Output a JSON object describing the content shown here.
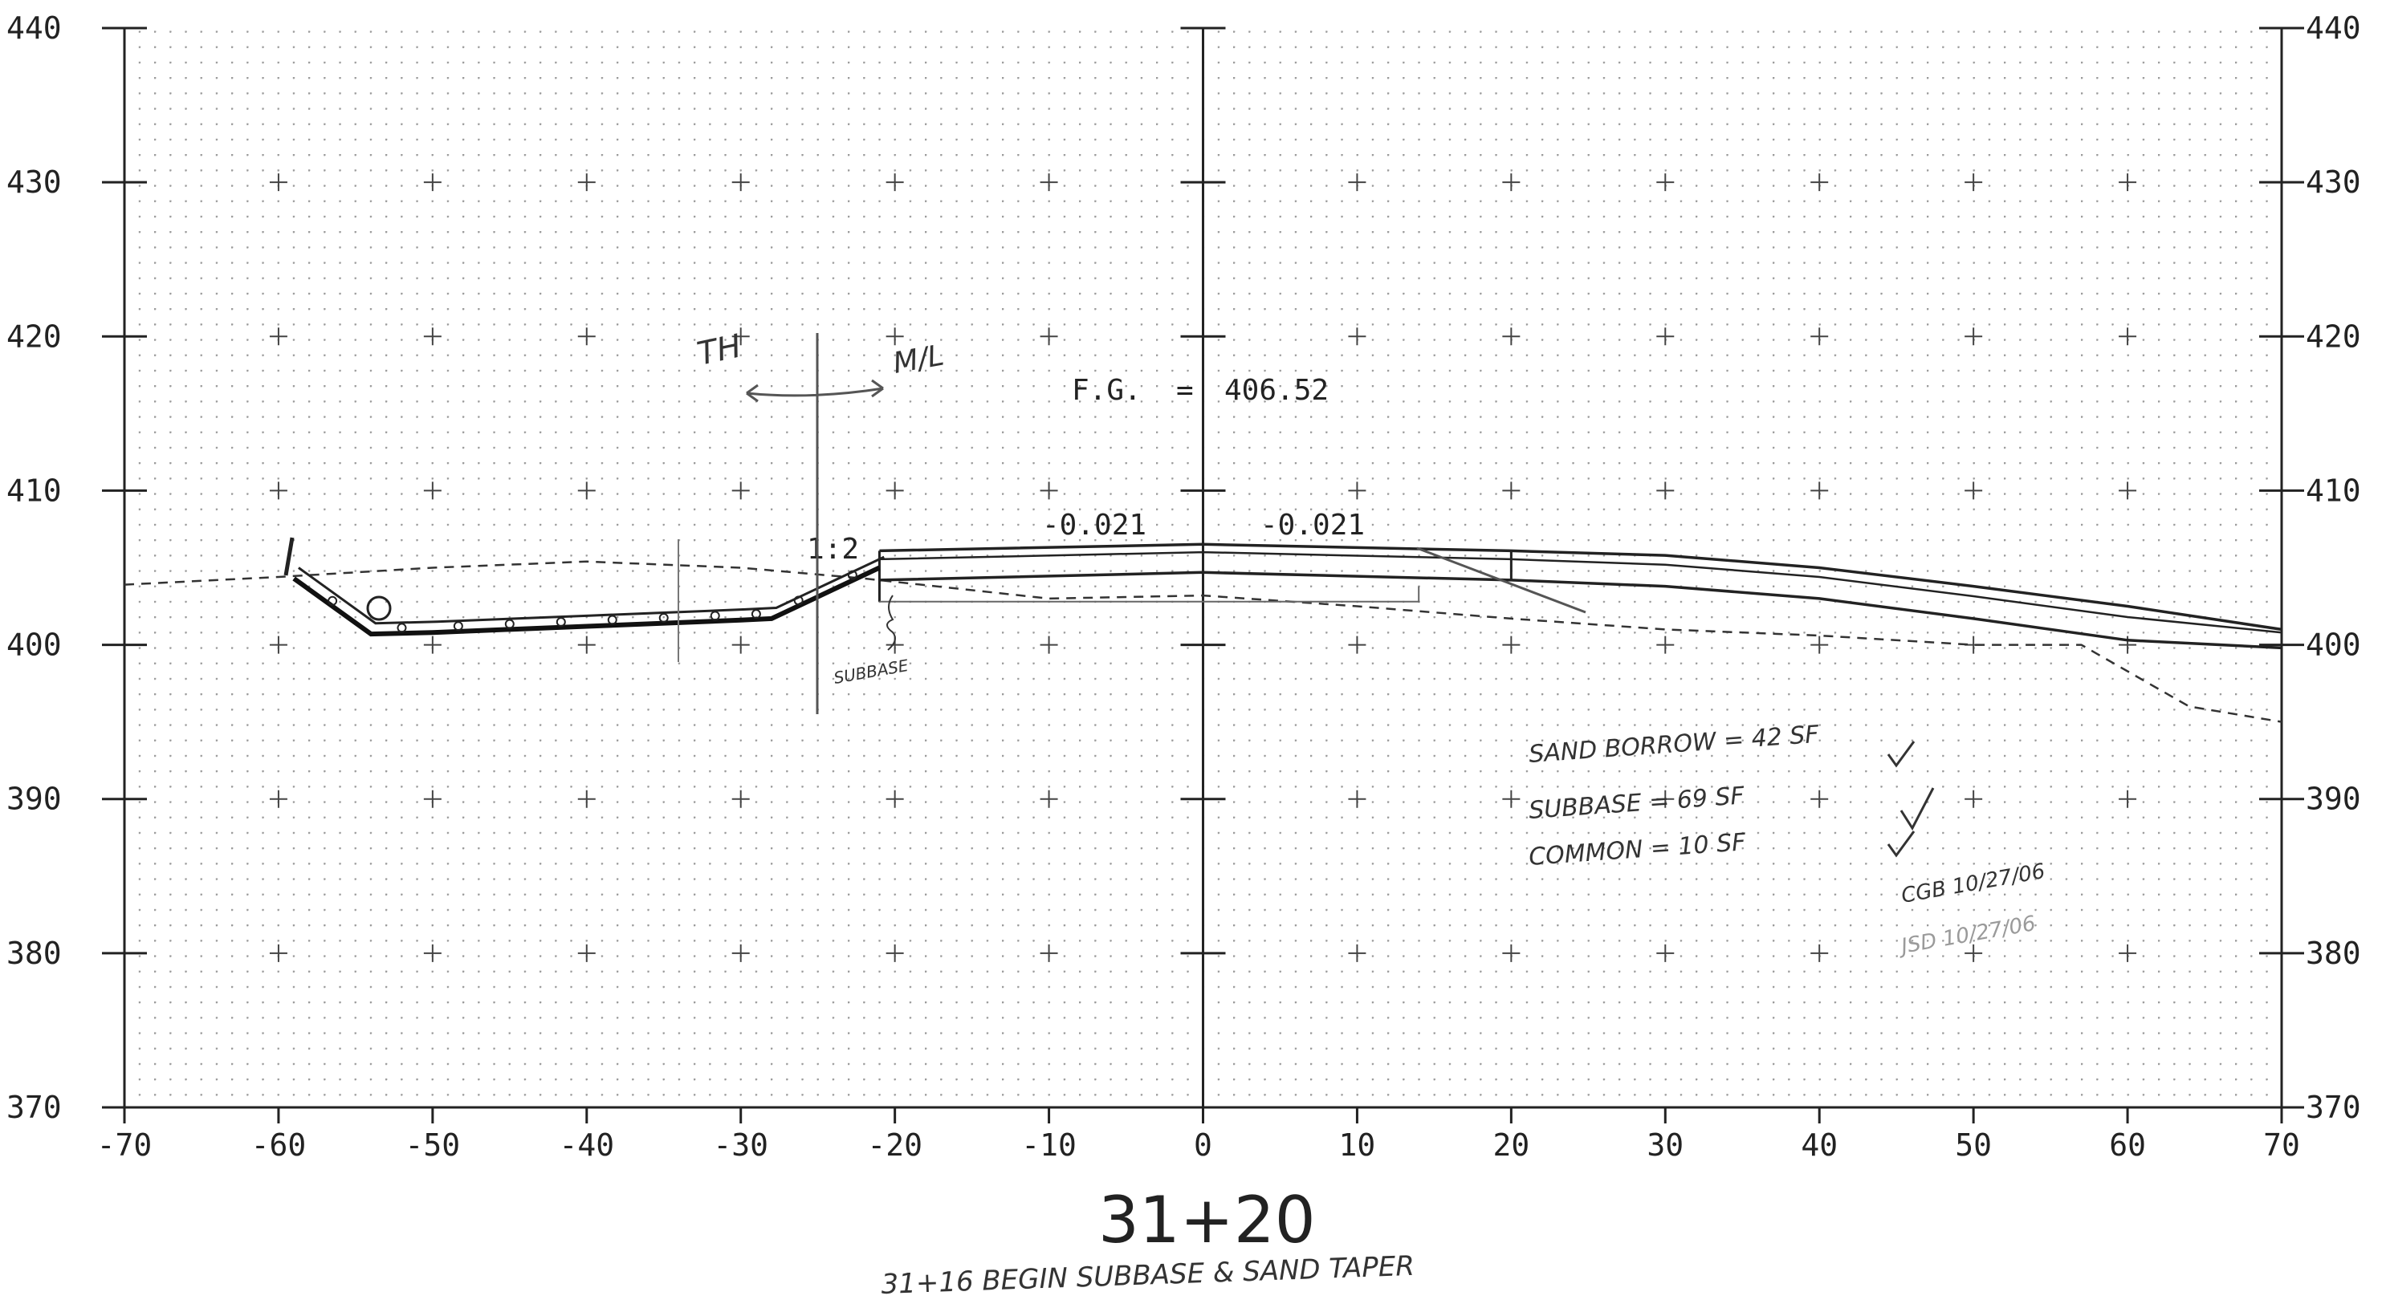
{
  "chart_data": {
    "type": "diagram",
    "x_range": [
      -70,
      70
    ],
    "y_range": [
      370,
      440
    ],
    "x_ticks": [
      "-70",
      "-60",
      "-50",
      "-40",
      "-30",
      "-20",
      "-10",
      "0",
      "10",
      "20",
      "30",
      "40",
      "50",
      "60",
      "70"
    ],
    "y_ticks": [
      "440",
      "430",
      "420",
      "410",
      "400",
      "390",
      "380",
      "370"
    ],
    "station": "31+20",
    "finished_grade_label": "F.G.",
    "finished_grade_eq": "=",
    "finished_grade_value": "406.52",
    "slope_left": "-0.021",
    "slope_right": "-0.021",
    "side_slope": "1:2",
    "finished_grade_top": [
      [
        -21,
        406.1
      ],
      [
        0,
        406.52
      ],
      [
        20,
        406.1
      ],
      [
        30,
        405.8
      ],
      [
        40,
        405
      ],
      [
        50,
        403.8
      ],
      [
        60,
        402.5
      ],
      [
        70,
        401
      ]
    ],
    "finished_grade_base": [
      [
        -21,
        404.2
      ],
      [
        0,
        404.7
      ],
      [
        20,
        404.2
      ],
      [
        30,
        403.8
      ],
      [
        40,
        403
      ],
      [
        50,
        401.7
      ],
      [
        60,
        400.3
      ],
      [
        70,
        399.8
      ]
    ],
    "existing_ground": [
      [
        -70,
        403.9
      ],
      [
        -60,
        404.4
      ],
      [
        -50,
        405
      ],
      [
        -40,
        405.4
      ],
      [
        -30,
        405
      ],
      [
        -22,
        404.3
      ],
      [
        -10,
        403
      ],
      [
        0,
        403.2
      ],
      [
        10,
        402.5
      ],
      [
        20,
        401.7
      ],
      [
        30,
        401
      ],
      [
        40,
        400.6
      ],
      [
        50,
        400
      ],
      [
        57,
        400
      ],
      [
        64,
        396
      ],
      [
        70,
        395
      ]
    ],
    "ditch": [
      [
        -59,
        404.3
      ],
      [
        -54,
        400.7
      ],
      [
        -50,
        400.8
      ],
      [
        -40,
        401.2
      ],
      [
        -30,
        401.6
      ],
      [
        -28,
        401.7
      ],
      [
        -21,
        405
      ]
    ]
  },
  "annotations": {
    "th": "TH",
    "ml": "M/L",
    "subbase_note": "SUBBASE",
    "sand_borrow": "SAND BORROW = 42 SF",
    "subbase_qty": "SUBBASE = 69 SF",
    "common": "COMMON = 10 SF",
    "check_1": "CGB 10/27/06",
    "check_2": "JSD 10/27/06",
    "footer": "31+16 BEGIN SUBBASE & SAND TAPER"
  }
}
